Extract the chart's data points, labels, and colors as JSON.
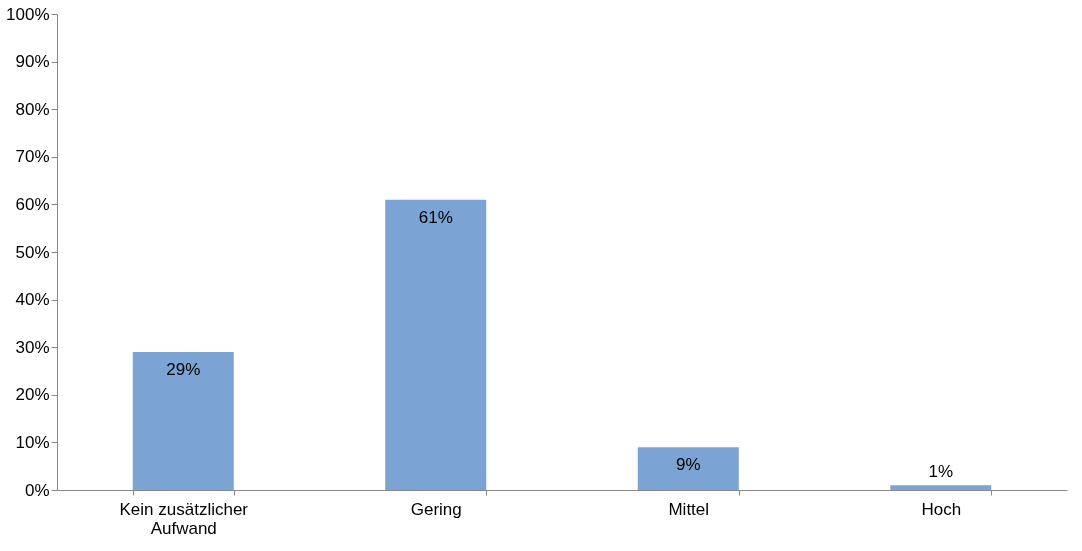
{
  "chart_data": {
    "type": "bar",
    "categories": [
      "Kein zusätzlicher Aufwand",
      "Gering",
      "Mittel",
      "Hoch"
    ],
    "values": [
      29,
      61,
      9,
      1
    ],
    "value_labels": [
      "29%",
      "61%",
      "9%",
      "1%"
    ],
    "color": "#7ba3d4",
    "grid": false,
    "ylim": [
      0,
      100
    ],
    "yticks": [
      {
        "value": 0,
        "label": "0%"
      },
      {
        "value": 10,
        "label": "10%"
      },
      {
        "value": 20,
        "label": "20%"
      },
      {
        "value": 30,
        "label": "30%"
      },
      {
        "value": 40,
        "label": "40%"
      },
      {
        "value": 50,
        "label": "50%"
      },
      {
        "value": 60,
        "label": "60%"
      },
      {
        "value": 70,
        "label": "70%"
      },
      {
        "value": 80,
        "label": "80%"
      },
      {
        "value": 90,
        "label": "90%"
      },
      {
        "value": 100,
        "label": "100%"
      }
    ]
  }
}
